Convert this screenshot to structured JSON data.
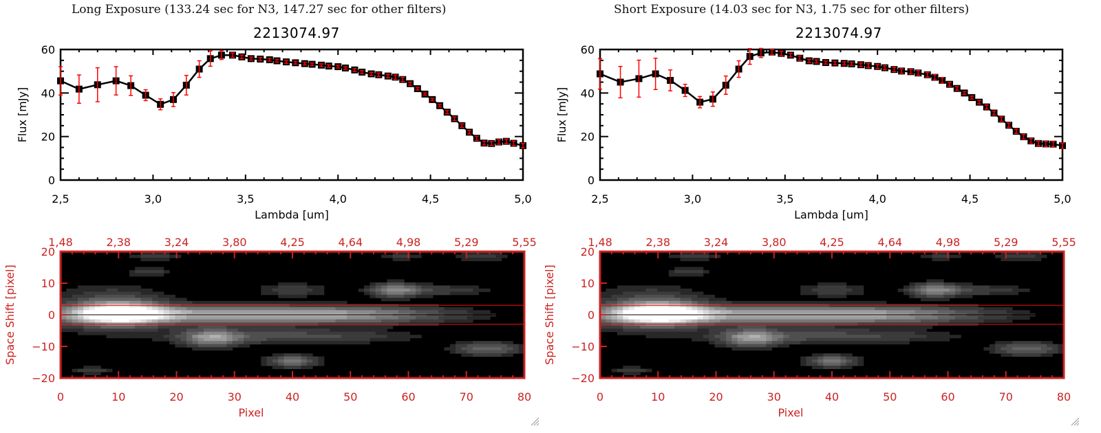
{
  "panels": [
    {
      "title": "Long Exposure (133.24 sec for N3, 147.27 sec for other filters)",
      "object_id": "2213074.97"
    },
    {
      "title": "Short Exposure (14.03 sec for N3, 1.75 sec for other filters)",
      "object_id": "2213074.97"
    }
  ],
  "colors": {
    "axis_black": "#000000",
    "axis_red": "#cc2222",
    "errorbar": "#ff0000",
    "marker": "#000000",
    "aperture_line": "#dd1111"
  },
  "chart_data": [
    {
      "type": "line",
      "panel": "long",
      "title": "2213074.97",
      "xlabel": "Lambda [um]",
      "ylabel": "Flux [mJy]",
      "xlim": [
        2.5,
        5.0
      ],
      "ylim": [
        0,
        60
      ],
      "xticks": [
        "2.5",
        "3.0",
        "3.5",
        "4.0",
        "4.5",
        "5.0"
      ],
      "xtick_values": [
        2.5,
        3.0,
        3.5,
        4.0,
        4.5,
        5.0
      ],
      "yticks": [
        "0",
        "20",
        "40",
        "60"
      ],
      "ytick_values": [
        0,
        20,
        40,
        60
      ],
      "series": [
        {
          "name": "flux",
          "x": [
            2.5,
            2.6,
            2.7,
            2.8,
            2.88,
            2.96,
            3.04,
            3.11,
            3.18,
            3.25,
            3.31,
            3.37,
            3.43,
            3.48,
            3.53,
            3.58,
            3.63,
            3.67,
            3.72,
            3.77,
            3.82,
            3.86,
            3.91,
            3.95,
            4.0,
            4.04,
            4.09,
            4.13,
            4.18,
            4.22,
            4.27,
            4.31,
            4.35,
            4.39,
            4.43,
            4.47,
            4.51,
            4.55,
            4.59,
            4.63,
            4.67,
            4.71,
            4.75,
            4.79,
            4.83,
            4.87,
            4.91,
            4.95,
            5.0
          ],
          "y": [
            45.6,
            41.8,
            43.8,
            45.6,
            43.4,
            39.0,
            34.8,
            37.0,
            43.6,
            51.0,
            55.8,
            57.4,
            57.4,
            56.6,
            55.8,
            55.6,
            55.3,
            54.8,
            54.3,
            53.9,
            53.5,
            53.2,
            52.8,
            52.4,
            52.1,
            51.5,
            50.6,
            49.6,
            48.8,
            48.4,
            47.8,
            47.3,
            46.2,
            44.3,
            42.0,
            39.5,
            37.0,
            34.2,
            31.2,
            28.2,
            25.0,
            22.0,
            19.2,
            17.0,
            16.8,
            17.5,
            17.8,
            16.9,
            15.8
          ],
          "err": [
            6.5,
            6.5,
            7.8,
            6.5,
            4.5,
            2.5,
            2.5,
            3.2,
            4.5,
            3.8,
            3.5,
            2.0,
            1.0,
            0.8,
            0.7,
            0.7,
            0.6,
            0.6,
            0.7,
            0.6,
            0.6,
            0.6,
            0.6,
            0.6,
            0.6,
            0.6,
            0.7,
            0.7,
            0.7,
            0.8,
            0.8,
            1.0,
            1.0,
            0.7,
            0.6,
            0.5,
            0.5,
            0.6,
            0.7,
            0.8,
            0.8,
            0.8,
            0.9,
            0.9,
            0.9,
            1.0,
            1.0,
            1.0,
            1.0
          ]
        }
      ]
    },
    {
      "type": "heatmap",
      "panel": "long",
      "xlabel": "Pixel",
      "ylabel": "Space Shift [pixel]",
      "xlim": [
        0,
        80
      ],
      "ylim": [
        -20,
        20
      ],
      "xticks": [
        "0",
        "10",
        "20",
        "30",
        "40",
        "50",
        "60",
        "70",
        "80"
      ],
      "yticks": [
        "-20",
        "-10",
        "0",
        "10",
        "20"
      ],
      "top_axis_ticks": [
        "1.48",
        "2.38",
        "3.24",
        "3.80",
        "4.25",
        "4.64",
        "4.98",
        "5.29",
        "5.55"
      ],
      "aperture_lines": [
        3,
        -3
      ],
      "center_line": 0,
      "blobs": [
        {
          "x": 10,
          "y": 0.5,
          "sx": 5,
          "sy": 2.3,
          "amp": 0.95
        },
        {
          "x": 25,
          "y": 0,
          "sx": 22,
          "sy": 2.0,
          "amp": 0.6
        },
        {
          "x": 50,
          "y": 0,
          "sx": 12,
          "sy": 1.8,
          "amp": 0.3
        },
        {
          "x": 8,
          "y": 2,
          "sx": 7,
          "sy": 5,
          "amp": 0.25
        },
        {
          "x": 26,
          "y": -7.5,
          "sx": 3.5,
          "sy": 2,
          "amp": 0.5
        },
        {
          "x": 40,
          "y": -7,
          "sx": 14,
          "sy": 1.6,
          "amp": 0.25
        },
        {
          "x": 40,
          "y": -15,
          "sx": 3,
          "sy": 1.4,
          "amp": 0.4
        },
        {
          "x": 58,
          "y": 8,
          "sx": 3,
          "sy": 1.6,
          "amp": 0.45
        },
        {
          "x": 66,
          "y": 8,
          "sx": 6,
          "sy": 1.2,
          "amp": 0.18
        },
        {
          "x": 40,
          "y": 8,
          "sx": 4,
          "sy": 1.5,
          "amp": 0.2
        },
        {
          "x": 74,
          "y": -11,
          "sx": 4,
          "sy": 1.5,
          "amp": 0.35
        },
        {
          "x": 16,
          "y": 19,
          "sx": 3,
          "sy": 1,
          "amp": 0.18
        },
        {
          "x": 15,
          "y": 14,
          "sx": 2.5,
          "sy": 1,
          "amp": 0.18
        },
        {
          "x": 73,
          "y": 19,
          "sx": 3,
          "sy": 1,
          "amp": 0.2
        },
        {
          "x": 59,
          "y": 19,
          "sx": 2.5,
          "sy": 1,
          "amp": 0.15
        },
        {
          "x": 5,
          "y": -18,
          "sx": 2.5,
          "sy": 0.8,
          "amp": 0.18
        }
      ]
    },
    {
      "type": "line",
      "panel": "short",
      "title": "2213074.97",
      "xlabel": "Lambda [um]",
      "ylabel": "Flux [mJy]",
      "xlim": [
        2.5,
        5.0
      ],
      "ylim": [
        0,
        60
      ],
      "xticks": [
        "2.5",
        "3.0",
        "3.5",
        "4.0",
        "4.5",
        "5.0"
      ],
      "xtick_values": [
        2.5,
        3.0,
        3.5,
        4.0,
        4.5,
        5.0
      ],
      "yticks": [
        "0",
        "20",
        "40",
        "60"
      ],
      "ytick_values": [
        0,
        20,
        40,
        60
      ],
      "series": [
        {
          "name": "flux",
          "x": [
            2.5,
            2.61,
            2.71,
            2.8,
            2.88,
            2.96,
            3.04,
            3.11,
            3.18,
            3.25,
            3.31,
            3.37,
            3.43,
            3.48,
            3.53,
            3.58,
            3.63,
            3.67,
            3.72,
            3.77,
            3.82,
            3.86,
            3.91,
            3.95,
            4.0,
            4.04,
            4.09,
            4.13,
            4.18,
            4.22,
            4.27,
            4.31,
            4.35,
            4.39,
            4.43,
            4.47,
            4.51,
            4.55,
            4.59,
            4.63,
            4.67,
            4.71,
            4.75,
            4.79,
            4.83,
            4.87,
            4.91,
            4.95,
            5.0
          ],
          "y": [
            48.8,
            45.0,
            46.6,
            48.8,
            45.8,
            41.2,
            35.8,
            37.2,
            43.6,
            51.0,
            56.8,
            58.4,
            58.8,
            58.2,
            57.4,
            56.0,
            54.8,
            54.5,
            54.0,
            53.8,
            53.6,
            53.4,
            53.0,
            52.6,
            52.2,
            51.6,
            50.8,
            50.1,
            49.8,
            49.2,
            48.4,
            47.2,
            45.8,
            44.0,
            42.1,
            40.0,
            37.9,
            35.8,
            33.6,
            30.8,
            28.0,
            25.2,
            22.4,
            19.9,
            18.0,
            16.8,
            16.6,
            16.5,
            15.8
          ],
          "err": [
            7.0,
            7.2,
            8.5,
            7.2,
            4.8,
            2.8,
            2.6,
            3.3,
            4.2,
            3.8,
            3.6,
            2.1,
            1.2,
            1.0,
            0.8,
            1.0,
            0.7,
            0.7,
            0.7,
            0.7,
            0.7,
            0.8,
            0.8,
            0.9,
            0.9,
            0.9,
            1.0,
            1.0,
            1.0,
            1.1,
            1.1,
            1.2,
            1.3,
            0.9,
            0.8,
            0.6,
            0.7,
            0.8,
            0.9,
            0.9,
            1.0,
            1.0,
            1.0,
            1.1,
            1.1,
            1.1,
            1.2,
            1.2,
            1.2
          ]
        }
      ]
    },
    {
      "type": "heatmap",
      "panel": "short",
      "xlabel": "Pixel",
      "ylabel": "Space Shift [pixel]",
      "xlim": [
        0,
        80
      ],
      "ylim": [
        -20,
        20
      ],
      "xticks": [
        "0",
        "10",
        "20",
        "30",
        "40",
        "50",
        "60",
        "70",
        "80"
      ],
      "yticks": [
        "-20",
        "-10",
        "0",
        "10",
        "20"
      ],
      "top_axis_ticks": [
        "1.48",
        "2.38",
        "3.24",
        "3.80",
        "4.25",
        "4.64",
        "4.98",
        "5.29",
        "5.55"
      ],
      "aperture_lines": [
        3,
        -3
      ],
      "center_line": 0,
      "blobs": [
        {
          "x": 10,
          "y": 0.5,
          "sx": 5,
          "sy": 2.3,
          "amp": 0.95
        },
        {
          "x": 25,
          "y": 0,
          "sx": 22,
          "sy": 2.0,
          "amp": 0.6
        },
        {
          "x": 50,
          "y": 0,
          "sx": 12,
          "sy": 1.8,
          "amp": 0.3
        },
        {
          "x": 8,
          "y": 2,
          "sx": 7,
          "sy": 5,
          "amp": 0.25
        },
        {
          "x": 26,
          "y": -7.5,
          "sx": 3.5,
          "sy": 2,
          "amp": 0.5
        },
        {
          "x": 40,
          "y": -7,
          "sx": 14,
          "sy": 1.6,
          "amp": 0.25
        },
        {
          "x": 40,
          "y": -15,
          "sx": 3,
          "sy": 1.4,
          "amp": 0.4
        },
        {
          "x": 58,
          "y": 8,
          "sx": 3,
          "sy": 1.6,
          "amp": 0.45
        },
        {
          "x": 66,
          "y": 8,
          "sx": 6,
          "sy": 1.2,
          "amp": 0.18
        },
        {
          "x": 40,
          "y": 8,
          "sx": 4,
          "sy": 1.5,
          "amp": 0.2
        },
        {
          "x": 74,
          "y": -11,
          "sx": 4,
          "sy": 1.5,
          "amp": 0.35
        },
        {
          "x": 16,
          "y": 19,
          "sx": 3,
          "sy": 1,
          "amp": 0.18
        },
        {
          "x": 15,
          "y": 14,
          "sx": 2.5,
          "sy": 1,
          "amp": 0.18
        },
        {
          "x": 73,
          "y": 19,
          "sx": 3,
          "sy": 1,
          "amp": 0.2
        },
        {
          "x": 59,
          "y": 19,
          "sx": 2.5,
          "sy": 1,
          "amp": 0.15
        },
        {
          "x": 5,
          "y": -18,
          "sx": 2.5,
          "sy": 0.8,
          "amp": 0.18
        }
      ]
    }
  ]
}
